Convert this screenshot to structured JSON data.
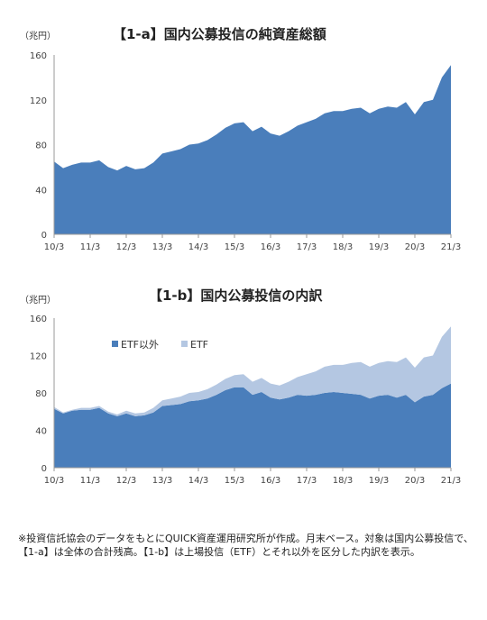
{
  "chart_data": [
    {
      "type": "area",
      "title": "【1-a】国内公募投信の純資産総額",
      "unit_label": "（兆円）",
      "ylim": [
        0,
        160
      ],
      "yticks": [
        "0",
        "40",
        "80",
        "120",
        "160"
      ],
      "xticks": [
        "10/3",
        "11/3",
        "12/3",
        "13/3",
        "14/3",
        "15/3",
        "16/3",
        "17/3",
        "18/3",
        "19/3",
        "20/3",
        "21/3"
      ],
      "grid": false,
      "x": [
        "2010-03",
        "2010-06",
        "2010-09",
        "2010-12",
        "2011-03",
        "2011-06",
        "2011-09",
        "2011-12",
        "2012-03",
        "2012-06",
        "2012-09",
        "2012-12",
        "2013-03",
        "2013-06",
        "2013-09",
        "2013-12",
        "2014-03",
        "2014-06",
        "2014-09",
        "2014-12",
        "2015-03",
        "2015-06",
        "2015-09",
        "2015-12",
        "2016-03",
        "2016-06",
        "2016-09",
        "2016-12",
        "2017-03",
        "2017-06",
        "2017-09",
        "2017-12",
        "2018-03",
        "2018-06",
        "2018-09",
        "2018-12",
        "2019-03",
        "2019-06",
        "2019-09",
        "2019-12",
        "2020-03",
        "2020-06",
        "2020-09",
        "2020-12",
        "2021-03"
      ],
      "series": [
        {
          "name": "",
          "color": "#4a7ebb",
          "values": [
            65,
            59,
            62,
            64,
            64,
            66,
            60,
            57,
            61,
            58,
            59,
            64,
            72,
            74,
            76,
            80,
            81,
            84,
            89,
            95,
            99,
            100,
            92,
            96,
            90,
            88,
            92,
            97,
            100,
            103,
            108,
            110,
            110,
            112,
            113,
            108,
            112,
            114,
            113,
            118,
            107,
            118,
            120,
            140,
            151
          ]
        }
      ]
    },
    {
      "type": "area",
      "title": "【1-b】国内公募投信の内訳",
      "unit_label": "（兆円）",
      "ylim": [
        0,
        160
      ],
      "yticks": [
        "0",
        "40",
        "80",
        "120",
        "160"
      ],
      "xticks": [
        "10/3",
        "11/3",
        "12/3",
        "13/3",
        "14/3",
        "15/3",
        "16/3",
        "17/3",
        "18/3",
        "19/3",
        "20/3",
        "21/3"
      ],
      "grid": false,
      "legend_position": "top-left",
      "x": [
        "2010-03",
        "2010-06",
        "2010-09",
        "2010-12",
        "2011-03",
        "2011-06",
        "2011-09",
        "2011-12",
        "2012-03",
        "2012-06",
        "2012-09",
        "2012-12",
        "2013-03",
        "2013-06",
        "2013-09",
        "2013-12",
        "2014-03",
        "2014-06",
        "2014-09",
        "2014-12",
        "2015-03",
        "2015-06",
        "2015-09",
        "2015-12",
        "2016-03",
        "2016-06",
        "2016-09",
        "2016-12",
        "2017-03",
        "2017-06",
        "2017-09",
        "2017-12",
        "2018-03",
        "2018-06",
        "2018-09",
        "2018-12",
        "2019-03",
        "2019-06",
        "2019-09",
        "2019-12",
        "2020-03",
        "2020-06",
        "2020-09",
        "2020-12",
        "2021-03"
      ],
      "series": [
        {
          "name": "ETF以外",
          "color": "#4a7ebb",
          "stacked": true,
          "values": [
            63,
            58,
            61,
            62,
            62,
            64,
            58,
            55,
            58,
            55,
            56,
            59,
            66,
            67,
            68,
            71,
            72,
            74,
            78,
            83,
            86,
            86,
            78,
            81,
            75,
            73,
            75,
            78,
            77,
            78,
            80,
            81,
            80,
            79,
            78,
            74,
            77,
            78,
            75,
            78,
            70,
            76,
            78,
            85,
            90
          ]
        },
        {
          "name": "ETF",
          "color": "#b4c7e2",
          "stacked": true,
          "values": [
            2,
            1,
            1,
            2,
            2,
            2,
            2,
            2,
            3,
            3,
            3,
            5,
            6,
            7,
            8,
            9,
            9,
            10,
            11,
            12,
            13,
            14,
            14,
            15,
            15,
            15,
            17,
            19,
            23,
            25,
            28,
            29,
            30,
            33,
            35,
            34,
            35,
            36,
            38,
            40,
            37,
            42,
            42,
            55,
            61
          ]
        }
      ]
    }
  ],
  "footnote": "※投資信託協会のデータをもとにQUICK資産運用研究所が作成。月末ベース。対象は国内公募投信で、【1-a】は全体の合計残高。【1-b】は上場投信（ETF）とそれ以外を区分した内訳を表示。"
}
